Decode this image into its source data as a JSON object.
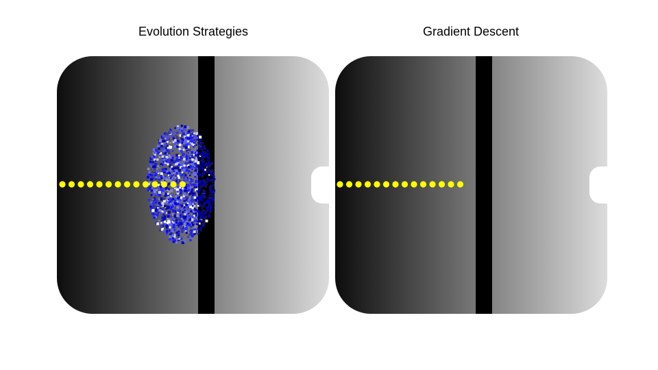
{
  "panels": [
    {
      "title": "Evolution Strategies",
      "trajectory_points": 14,
      "has_population_cloud": true
    },
    {
      "title": "Gradient Descent",
      "trajectory_points": 14,
      "has_population_cloud": false
    }
  ],
  "colors": {
    "background": "#ffffff",
    "gradient_start": "#0d0d0d",
    "gradient_end": "#dcdcdc",
    "wall": "#000000",
    "trajectory": "#ffff00",
    "population": "#1a1aff",
    "population_highlight": "#ffffff"
  }
}
